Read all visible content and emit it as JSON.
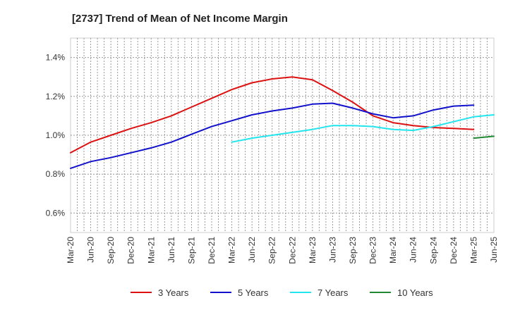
{
  "chart_data": {
    "type": "line",
    "title": "[2737]  Trend of Mean of Net Income Margin",
    "ylim": [
      0.5,
      1.5
    ],
    "y_ticks": [
      0.6,
      0.8,
      1.0,
      1.2,
      1.4
    ],
    "y_tick_labels": [
      "0.6%",
      "0.8%",
      "1.0%",
      "1.2%",
      "1.4%"
    ],
    "x_tick_labels": [
      "Mar-20",
      "Jun-20",
      "Sep-20",
      "Dec-20",
      "Mar-21",
      "Jun-21",
      "Sep-21",
      "Dec-21",
      "Mar-22",
      "Jun-22",
      "Sep-22",
      "Dec-22",
      "Mar-23",
      "Jun-23",
      "Sep-23",
      "Dec-23",
      "Mar-24",
      "Jun-24",
      "Sep-24",
      "Dec-24",
      "Mar-25",
      "Jun-25"
    ],
    "grid": true,
    "legend_position": "bottom",
    "series": [
      {
        "name": "3 Years",
        "color": "#dd1111",
        "start_index": 0,
        "values": [
          0.91,
          0.965,
          1.0,
          1.035,
          1.065,
          1.1,
          1.145,
          1.19,
          1.235,
          1.27,
          1.29,
          1.3,
          1.285,
          1.23,
          1.17,
          1.1,
          1.065,
          1.05,
          1.04,
          1.035,
          1.03
        ]
      },
      {
        "name": "5 Years",
        "color": "#1111cc",
        "start_index": 0,
        "values": [
          0.83,
          0.865,
          0.885,
          0.91,
          0.935,
          0.965,
          1.005,
          1.045,
          1.075,
          1.105,
          1.125,
          1.14,
          1.16,
          1.165,
          1.14,
          1.11,
          1.09,
          1.1,
          1.13,
          1.15,
          1.155
        ]
      },
      {
        "name": "7 Years",
        "color": "#22e5ee",
        "start_index": 8,
        "values": [
          0.965,
          0.985,
          1.0,
          1.015,
          1.03,
          1.05,
          1.05,
          1.045,
          1.03,
          1.025,
          1.045,
          1.07,
          1.095,
          1.105
        ]
      },
      {
        "name": "10 Years",
        "color": "#228833",
        "start_index": 20,
        "values": [
          0.985,
          0.995
        ]
      }
    ]
  }
}
